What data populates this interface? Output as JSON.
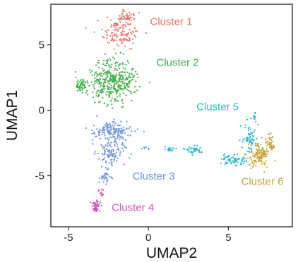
{
  "chart_data": {
    "type": "scatter",
    "xlabel": "UMAP2",
    "ylabel": "UMAP1",
    "xlim": [
      -6.1,
      9.0
    ],
    "ylim": [
      -8.9,
      8.1
    ],
    "xticks": [
      -5,
      0,
      5
    ],
    "yticks": [
      5,
      0,
      -5
    ],
    "xtick_labels": [
      "-5",
      "0",
      "5"
    ],
    "ytick_labels": [
      "5",
      "0",
      "-5"
    ],
    "series": [
      {
        "name": "Cluster 1",
        "color": "#e8736b",
        "label_at": [
          0.1,
          6.5
        ],
        "count": 170,
        "blobs": [
          {
            "cx": -1.8,
            "cy": 5.9,
            "sx": 1.0,
            "sy": 0.9,
            "w": 1.0
          },
          {
            "cx": -1.3,
            "cy": 7.1,
            "sx": 0.5,
            "sy": 0.35,
            "w": 0.3
          }
        ]
      },
      {
        "name": "Cluster 2",
        "color": "#3fae49",
        "label_at": [
          0.5,
          3.4
        ],
        "count": 420,
        "blobs": [
          {
            "cx": -2.2,
            "cy": 2.3,
            "sx": 1.3,
            "sy": 1.45,
            "w": 1.0
          },
          {
            "cx": -4.2,
            "cy": 1.9,
            "sx": 0.35,
            "sy": 0.5,
            "w": 0.12
          }
        ]
      },
      {
        "name": "Cluster 3",
        "color": "#6b93d6",
        "label_at": [
          -1.0,
          -5.3
        ],
        "count": 300,
        "blobs": [
          {
            "cx": -2.3,
            "cy": -1.6,
            "sx": 1.1,
            "sy": 0.75,
            "w": 1.0
          },
          {
            "cx": -2.3,
            "cy": -3.2,
            "sx": 0.75,
            "sy": 0.7,
            "w": 0.7
          },
          {
            "cx": -2.7,
            "cy": -5.0,
            "sx": 0.3,
            "sy": 0.6,
            "w": 0.22
          },
          {
            "cx": -0.2,
            "cy": -3.0,
            "sx": 0.25,
            "sy": 0.25,
            "w": 0.05
          }
        ]
      },
      {
        "name": "Cluster 4",
        "color": "#c85ab8",
        "label_at": [
          -2.3,
          -7.7
        ],
        "count": 60,
        "blobs": [
          {
            "cx": -3.3,
            "cy": -7.3,
            "sx": 0.25,
            "sy": 0.4,
            "w": 1.0
          },
          {
            "cx": -2.9,
            "cy": -6.3,
            "sx": 0.2,
            "sy": 0.3,
            "w": 0.35
          }
        ]
      },
      {
        "name": "Cluster 5",
        "color": "#2fb8c4",
        "label_at": [
          3.0,
          0.0
        ],
        "count": 200,
        "blobs": [
          {
            "cx": 2.9,
            "cy": -3.0,
            "sx": 0.5,
            "sy": 0.25,
            "w": 0.35
          },
          {
            "cx": 5.3,
            "cy": -3.8,
            "sx": 0.7,
            "sy": 0.4,
            "w": 0.6
          },
          {
            "cx": 6.3,
            "cy": -2.1,
            "sx": 0.4,
            "sy": 0.9,
            "w": 0.55
          },
          {
            "cx": 1.3,
            "cy": -3.0,
            "sx": 0.35,
            "sy": 0.12,
            "w": 0.15
          },
          {
            "cx": 6.6,
            "cy": -0.6,
            "sx": 0.15,
            "sy": 0.3,
            "w": 0.1
          }
        ]
      },
      {
        "name": "Cluster 6",
        "color": "#c8a43a",
        "label_at": [
          5.8,
          -5.7
        ],
        "count": 170,
        "blobs": [
          {
            "cx": 7.0,
            "cy": -3.4,
            "sx": 0.65,
            "sy": 0.9,
            "w": 1.0
          },
          {
            "cx": 7.6,
            "cy": -2.5,
            "sx": 0.3,
            "sy": 0.5,
            "w": 0.3
          }
        ]
      }
    ],
    "grid": false,
    "legend": "none"
  }
}
